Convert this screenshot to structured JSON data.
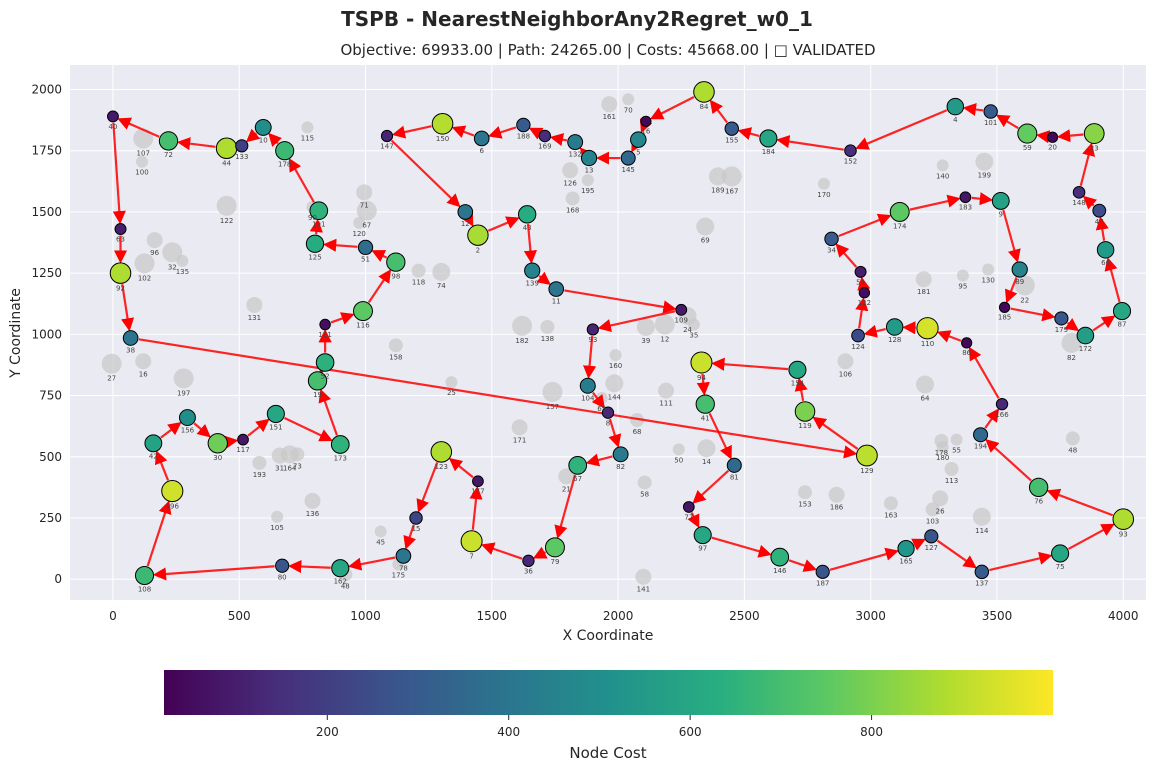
{
  "chart_data": {
    "type": "scatter",
    "title": "TSPB - NearestNeighborAny2Regret_w0_1",
    "subtitle": "Objective: 69933.00 | Path: 24265.00 | Costs: 45668.00 | □ VALIDATED",
    "xlabel": "X Coordinate",
    "ylabel": "Y Coordinate",
    "xlim": [
      -170,
      4090
    ],
    "ylim": [
      -85,
      2100
    ],
    "xticks": [
      0,
      500,
      1000,
      1500,
      2000,
      2500,
      3000,
      3500,
      4000
    ],
    "yticks": [
      0,
      250,
      500,
      750,
      1000,
      1250,
      1500,
      1750,
      2000
    ],
    "grid": true,
    "colorbar": {
      "label": "Node Cost",
      "range": [
        20,
        1000
      ],
      "ticks": [
        200,
        400,
        600,
        800
      ]
    },
    "colors": {
      "background": "#eaeaf2",
      "grid": "#ffffff",
      "edge": "#ff0000",
      "unselected": "#c8c8c8"
    },
    "selected_nodes": [
      {
        "id": "40",
        "x": 0,
        "y": 1890,
        "cost": 90
      },
      {
        "id": "63",
        "x": 30,
        "y": 1430,
        "cost": 100
      },
      {
        "id": "92",
        "x": 30,
        "y": 1250,
        "cost": 880
      },
      {
        "id": "38",
        "x": 70,
        "y": 985,
        "cost": 400
      },
      {
        "id": "72",
        "x": 220,
        "y": 1790,
        "cost": 700
      },
      {
        "id": "44",
        "x": 450,
        "y": 1760,
        "cost": 880
      },
      {
        "id": "133",
        "x": 510,
        "y": 1770,
        "cost": 200
      },
      {
        "id": "10",
        "x": 595,
        "y": 1845,
        "cost": 500
      },
      {
        "id": "178",
        "x": 680,
        "y": 1750,
        "cost": 680
      },
      {
        "id": "191",
        "x": 815,
        "y": 1505,
        "cost": 650
      },
      {
        "id": "125",
        "x": 800,
        "y": 1370,
        "cost": 620
      },
      {
        "id": "51",
        "x": 1000,
        "y": 1355,
        "cost": 370
      },
      {
        "id": "98",
        "x": 1120,
        "y": 1295,
        "cost": 700
      },
      {
        "id": "116",
        "x": 990,
        "y": 1095,
        "cost": 750
      },
      {
        "id": "121",
        "x": 840,
        "y": 1040,
        "cost": 60
      },
      {
        "id": "52",
        "x": 840,
        "y": 885,
        "cost": 640
      },
      {
        "id": "19",
        "x": 810,
        "y": 810,
        "cost": 700
      },
      {
        "id": "173",
        "x": 900,
        "y": 550,
        "cost": 650
      },
      {
        "id": "151",
        "x": 645,
        "y": 675,
        "cost": 600
      },
      {
        "id": "117",
        "x": 515,
        "y": 570,
        "cost": 80
      },
      {
        "id": "30",
        "x": 415,
        "y": 555,
        "cost": 780
      },
      {
        "id": "156",
        "x": 295,
        "y": 660,
        "cost": 500
      },
      {
        "id": "42",
        "x": 160,
        "y": 555,
        "cost": 580
      },
      {
        "id": "196",
        "x": 235,
        "y": 360,
        "cost": 930
      },
      {
        "id": "108",
        "x": 125,
        "y": 15,
        "cost": 680
      },
      {
        "id": "80",
        "x": 670,
        "y": 55,
        "cost": 280
      },
      {
        "id": "162",
        "x": 900,
        "y": 45,
        "cost": 600
      },
      {
        "id": "78",
        "x": 1150,
        "y": 95,
        "cost": 400
      },
      {
        "id": "15",
        "x": 1200,
        "y": 250,
        "cost": 220
      },
      {
        "id": "123",
        "x": 1300,
        "y": 520,
        "cost": 880
      },
      {
        "id": "177",
        "x": 1445,
        "y": 400,
        "cost": 80
      },
      {
        "id": "7",
        "x": 1420,
        "y": 155,
        "cost": 920
      },
      {
        "id": "36",
        "x": 1645,
        "y": 75,
        "cost": 130
      },
      {
        "id": "79",
        "x": 1750,
        "y": 130,
        "cost": 750
      },
      {
        "id": "57",
        "x": 1840,
        "y": 465,
        "cost": 650
      },
      {
        "id": "82",
        "x": 2010,
        "y": 510,
        "cost": 420
      },
      {
        "id": "8",
        "x": 1960,
        "y": 680,
        "cost": 130
      },
      {
        "id": "104",
        "x": 1880,
        "y": 790,
        "cost": 430
      },
      {
        "id": "93",
        "x": 1900,
        "y": 1020,
        "cost": 120
      },
      {
        "id": "109",
        "x": 2250,
        "y": 1100,
        "cost": 90
      },
      {
        "id": "11",
        "x": 1755,
        "y": 1185,
        "cost": 400
      },
      {
        "id": "139",
        "x": 1660,
        "y": 1260,
        "cost": 450
      },
      {
        "id": "43",
        "x": 1640,
        "y": 1490,
        "cost": 620
      },
      {
        "id": "2",
        "x": 1445,
        "y": 1405,
        "cost": 870
      },
      {
        "id": "12",
        "x": 1395,
        "y": 1500,
        "cost": 400
      },
      {
        "id": "147",
        "x": 1085,
        "y": 1810,
        "cost": 120
      },
      {
        "id": "150",
        "x": 1305,
        "y": 1860,
        "cost": 890
      },
      {
        "id": "6",
        "x": 1460,
        "y": 1800,
        "cost": 400
      },
      {
        "id": "188",
        "x": 1625,
        "y": 1855,
        "cost": 300
      },
      {
        "id": "169",
        "x": 1710,
        "y": 1810,
        "cost": 140
      },
      {
        "id": "132",
        "x": 1830,
        "y": 1785,
        "cost": 420
      },
      {
        "id": "13",
        "x": 1885,
        "y": 1720,
        "cost": 450
      },
      {
        "id": "145",
        "x": 2040,
        "y": 1720,
        "cost": 350
      },
      {
        "id": "5",
        "x": 2080,
        "y": 1795,
        "cost": 470
      },
      {
        "id": "16",
        "x": 2110,
        "y": 1870,
        "cost": 40
      },
      {
        "id": "84",
        "x": 2340,
        "y": 1990,
        "cost": 880
      },
      {
        "id": "155",
        "x": 2450,
        "y": 1840,
        "cost": 300
      },
      {
        "id": "184",
        "x": 2595,
        "y": 1800,
        "cost": 600
      },
      {
        "id": "152",
        "x": 2920,
        "y": 1750,
        "cost": 150
      },
      {
        "id": "4",
        "x": 3335,
        "y": 1930,
        "cost": 550
      },
      {
        "id": "101",
        "x": 3475,
        "y": 1910,
        "cost": 300
      },
      {
        "id": "59",
        "x": 3620,
        "y": 1820,
        "cost": 760
      },
      {
        "id": "20",
        "x": 3720,
        "y": 1805,
        "cost": 40
      },
      {
        "id": "23",
        "x": 3885,
        "y": 1820,
        "cost": 820
      },
      {
        "id": "148",
        "x": 3825,
        "y": 1580,
        "cost": 150
      },
      {
        "id": "47",
        "x": 3905,
        "y": 1505,
        "cost": 250
      },
      {
        "id": "66",
        "x": 3930,
        "y": 1345,
        "cost": 550
      },
      {
        "id": "87",
        "x": 3995,
        "y": 1095,
        "cost": 600
      },
      {
        "id": "172",
        "x": 3850,
        "y": 995,
        "cost": 560
      },
      {
        "id": "179",
        "x": 3755,
        "y": 1065,
        "cost": 280
      },
      {
        "id": "185",
        "x": 3530,
        "y": 1110,
        "cost": 40
      },
      {
        "id": "89",
        "x": 3590,
        "y": 1265,
        "cost": 450
      },
      {
        "id": "9",
        "x": 3515,
        "y": 1545,
        "cost": 580
      },
      {
        "id": "183",
        "x": 3375,
        "y": 1560,
        "cost": 80
      },
      {
        "id": "174",
        "x": 3115,
        "y": 1500,
        "cost": 750
      },
      {
        "id": "34",
        "x": 2845,
        "y": 1390,
        "cost": 300
      },
      {
        "id": "54",
        "x": 2960,
        "y": 1255,
        "cost": 100
      },
      {
        "id": "122",
        "x": 2975,
        "y": 1170,
        "cost": 50
      },
      {
        "id": "124",
        "x": 2950,
        "y": 995,
        "cost": 240
      },
      {
        "id": "128",
        "x": 3095,
        "y": 1030,
        "cost": 550
      },
      {
        "id": "110",
        "x": 3225,
        "y": 1025,
        "cost": 940
      },
      {
        "id": "86",
        "x": 3380,
        "y": 965,
        "cost": 40
      },
      {
        "id": "166",
        "x": 3520,
        "y": 715,
        "cost": 130
      },
      {
        "id": "194",
        "x": 3435,
        "y": 590,
        "cost": 350
      },
      {
        "id": "76",
        "x": 3665,
        "y": 375,
        "cost": 700
      },
      {
        "id": "93b",
        "x": 4000,
        "y": 245,
        "cost": 880
      },
      {
        "id": "75",
        "x": 3750,
        "y": 105,
        "cost": 600
      },
      {
        "id": "137",
        "x": 3440,
        "y": 30,
        "cost": 300
      },
      {
        "id": "127",
        "x": 3240,
        "y": 175,
        "cost": 280
      },
      {
        "id": "165",
        "x": 3140,
        "y": 125,
        "cost": 530
      },
      {
        "id": "187",
        "x": 2810,
        "y": 30,
        "cost": 280
      },
      {
        "id": "146",
        "x": 2640,
        "y": 90,
        "cost": 650
      },
      {
        "id": "97",
        "x": 2335,
        "y": 180,
        "cost": 600
      },
      {
        "id": "77",
        "x": 2280,
        "y": 295,
        "cost": 80
      },
      {
        "id": "81",
        "x": 2460,
        "y": 465,
        "cost": 350
      },
      {
        "id": "41",
        "x": 2345,
        "y": 715,
        "cost": 700
      },
      {
        "id": "94",
        "x": 2330,
        "y": 885,
        "cost": 920
      },
      {
        "id": "154",
        "x": 2710,
        "y": 855,
        "cost": 600
      },
      {
        "id": "119",
        "x": 2740,
        "y": 685,
        "cost": 800
      },
      {
        "id": "129",
        "x": 2985,
        "y": 505,
        "cost": 900
      }
    ],
    "tour": [
      "40",
      "63",
      "92",
      "38",
      "129",
      "119",
      "154",
      "94",
      "41",
      "81",
      "77",
      "97",
      "146",
      "187",
      "165",
      "127",
      "137",
      "75",
      "93b",
      "76",
      "194",
      "166",
      "86",
      "110",
      "128",
      "124",
      "122",
      "54",
      "34",
      "174",
      "183",
      "9",
      "89",
      "185",
      "179",
      "172",
      "87",
      "66",
      "47",
      "148",
      "23",
      "20",
      "59",
      "101",
      "4",
      "152",
      "184",
      "155",
      "84",
      "16",
      "5",
      "145",
      "13",
      "132",
      "169",
      "188",
      "6",
      "150",
      "147",
      "12",
      "2",
      "43",
      "139",
      "11",
      "109",
      "93",
      "104",
      "8",
      "82",
      "57",
      "79",
      "36",
      "7",
      "177",
      "123",
      "15",
      "78",
      "162",
      "80",
      "108",
      "196",
      "42",
      "156",
      "30",
      "117",
      "151",
      "173",
      "19",
      "52",
      "121",
      "116",
      "98",
      "51",
      "125",
      "191",
      "178",
      "10",
      "133",
      "44",
      "72",
      "40"
    ],
    "other_nodes": [
      {
        "id": "107",
        "x": 120,
        "y": 1800
      },
      {
        "id": "100",
        "x": 115,
        "y": 1705
      },
      {
        "id": "122",
        "x": 450,
        "y": 1525
      },
      {
        "id": "96",
        "x": 165,
        "y": 1385
      },
      {
        "id": "102",
        "x": 125,
        "y": 1290
      },
      {
        "id": "32",
        "x": 235,
        "y": 1335
      },
      {
        "id": "135",
        "x": 275,
        "y": 1300
      },
      {
        "id": "131",
        "x": 560,
        "y": 1120
      },
      {
        "id": "27",
        "x": -5,
        "y": 880
      },
      {
        "id": "16",
        "x": 120,
        "y": 890
      },
      {
        "id": "197",
        "x": 280,
        "y": 820
      },
      {
        "id": "158",
        "x": 1120,
        "y": 955
      },
      {
        "id": "25",
        "x": 1340,
        "y": 805
      },
      {
        "id": "118",
        "x": 1210,
        "y": 1260
      },
      {
        "id": "74",
        "x": 1300,
        "y": 1255
      },
      {
        "id": "71",
        "x": 995,
        "y": 1580
      },
      {
        "id": "67",
        "x": 1005,
        "y": 1505
      },
      {
        "id": "120",
        "x": 975,
        "y": 1455
      },
      {
        "id": "90",
        "x": 790,
        "y": 1520
      },
      {
        "id": "115",
        "x": 770,
        "y": 1845
      },
      {
        "id": "193",
        "x": 580,
        "y": 475
      },
      {
        "id": "31",
        "x": 660,
        "y": 505
      },
      {
        "id": "164",
        "x": 700,
        "y": 510
      },
      {
        "id": "73",
        "x": 730,
        "y": 510
      },
      {
        "id": "105",
        "x": 650,
        "y": 255
      },
      {
        "id": "136",
        "x": 790,
        "y": 320
      },
      {
        "id": "45",
        "x": 1060,
        "y": 195
      },
      {
        "id": "175",
        "x": 1130,
        "y": 60
      },
      {
        "id": "48",
        "x": 920,
        "y": 20
      },
      {
        "id": "171",
        "x": 1610,
        "y": 620
      },
      {
        "id": "157",
        "x": 1740,
        "y": 765
      },
      {
        "id": "144",
        "x": 1985,
        "y": 800
      },
      {
        "id": "65",
        "x": 1935,
        "y": 740
      },
      {
        "id": "160",
        "x": 1990,
        "y": 915
      },
      {
        "id": "182",
        "x": 1620,
        "y": 1035
      },
      {
        "id": "138",
        "x": 1720,
        "y": 1030
      },
      {
        "id": "39",
        "x": 2110,
        "y": 1030
      },
      {
        "id": "12",
        "x": 2185,
        "y": 1040
      },
      {
        "id": "35",
        "x": 2300,
        "y": 1040
      },
      {
        "id": "68",
        "x": 2075,
        "y": 650
      },
      {
        "id": "111",
        "x": 2190,
        "y": 770
      },
      {
        "id": "21",
        "x": 1795,
        "y": 420
      },
      {
        "id": "58",
        "x": 2105,
        "y": 395
      },
      {
        "id": "50",
        "x": 2240,
        "y": 530
      },
      {
        "id": "14",
        "x": 2350,
        "y": 535
      },
      {
        "id": "141",
        "x": 2100,
        "y": 10
      },
      {
        "id": "69",
        "x": 2345,
        "y": 1440
      },
      {
        "id": "126",
        "x": 1810,
        "y": 1670
      },
      {
        "id": "195",
        "x": 1880,
        "y": 1630
      },
      {
        "id": "168",
        "x": 1820,
        "y": 1555
      },
      {
        "id": "161",
        "x": 1965,
        "y": 1940
      },
      {
        "id": "70",
        "x": 2040,
        "y": 1960
      },
      {
        "id": "189",
        "x": 2395,
        "y": 1645
      },
      {
        "id": "167",
        "x": 2450,
        "y": 1645
      },
      {
        "id": "170",
        "x": 2815,
        "y": 1615
      },
      {
        "id": "140",
        "x": 3285,
        "y": 1690
      },
      {
        "id": "199",
        "x": 3450,
        "y": 1705
      },
      {
        "id": "181",
        "x": 3210,
        "y": 1225
      },
      {
        "id": "95",
        "x": 3365,
        "y": 1240
      },
      {
        "id": "130",
        "x": 3465,
        "y": 1265
      },
      {
        "id": "22",
        "x": 3610,
        "y": 1200
      },
      {
        "id": "82",
        "x": 3795,
        "y": 965
      },
      {
        "id": "106",
        "x": 2900,
        "y": 890
      },
      {
        "id": "64",
        "x": 3215,
        "y": 795
      },
      {
        "id": "178",
        "x": 3280,
        "y": 565
      },
      {
        "id": "180",
        "x": 3285,
        "y": 540
      },
      {
        "id": "55",
        "x": 3340,
        "y": 570
      },
      {
        "id": "48",
        "x": 3800,
        "y": 575
      },
      {
        "id": "113",
        "x": 3320,
        "y": 450
      },
      {
        "id": "26",
        "x": 3275,
        "y": 330
      },
      {
        "id": "103",
        "x": 3245,
        "y": 285
      },
      {
        "id": "114",
        "x": 3440,
        "y": 255
      },
      {
        "id": "163",
        "x": 3080,
        "y": 310
      },
      {
        "id": "186",
        "x": 2865,
        "y": 345
      },
      {
        "id": "153",
        "x": 2740,
        "y": 355
      },
      {
        "id": "24",
        "x": 2275,
        "y": 1075
      }
    ]
  }
}
